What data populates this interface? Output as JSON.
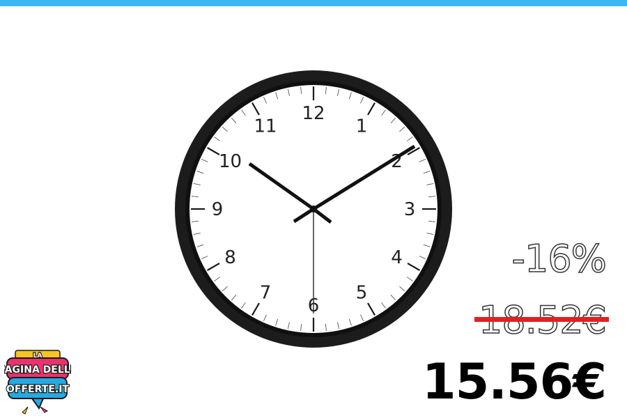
{
  "brand": {
    "logo_line1": "LA",
    "logo_line2": "PAGINA DELLE",
    "logo_line3": "OFFERTE.IT"
  },
  "product": {
    "image_icon": "wall-clock-icon",
    "clock_numerals": [
      "12",
      "1",
      "2",
      "3",
      "4",
      "5",
      "6",
      "7",
      "8",
      "9",
      "10",
      "11"
    ],
    "clock_time": "10:10"
  },
  "pricing": {
    "discount": "-16%",
    "old_price": "18.52€",
    "new_price": "15.56€"
  },
  "colors": {
    "top_bar": "#3fb7f3",
    "strike": "#e32020",
    "logo_pink": "#e8336f",
    "logo_blue": "#27a9e1",
    "logo_yellow": "#f7c325"
  }
}
